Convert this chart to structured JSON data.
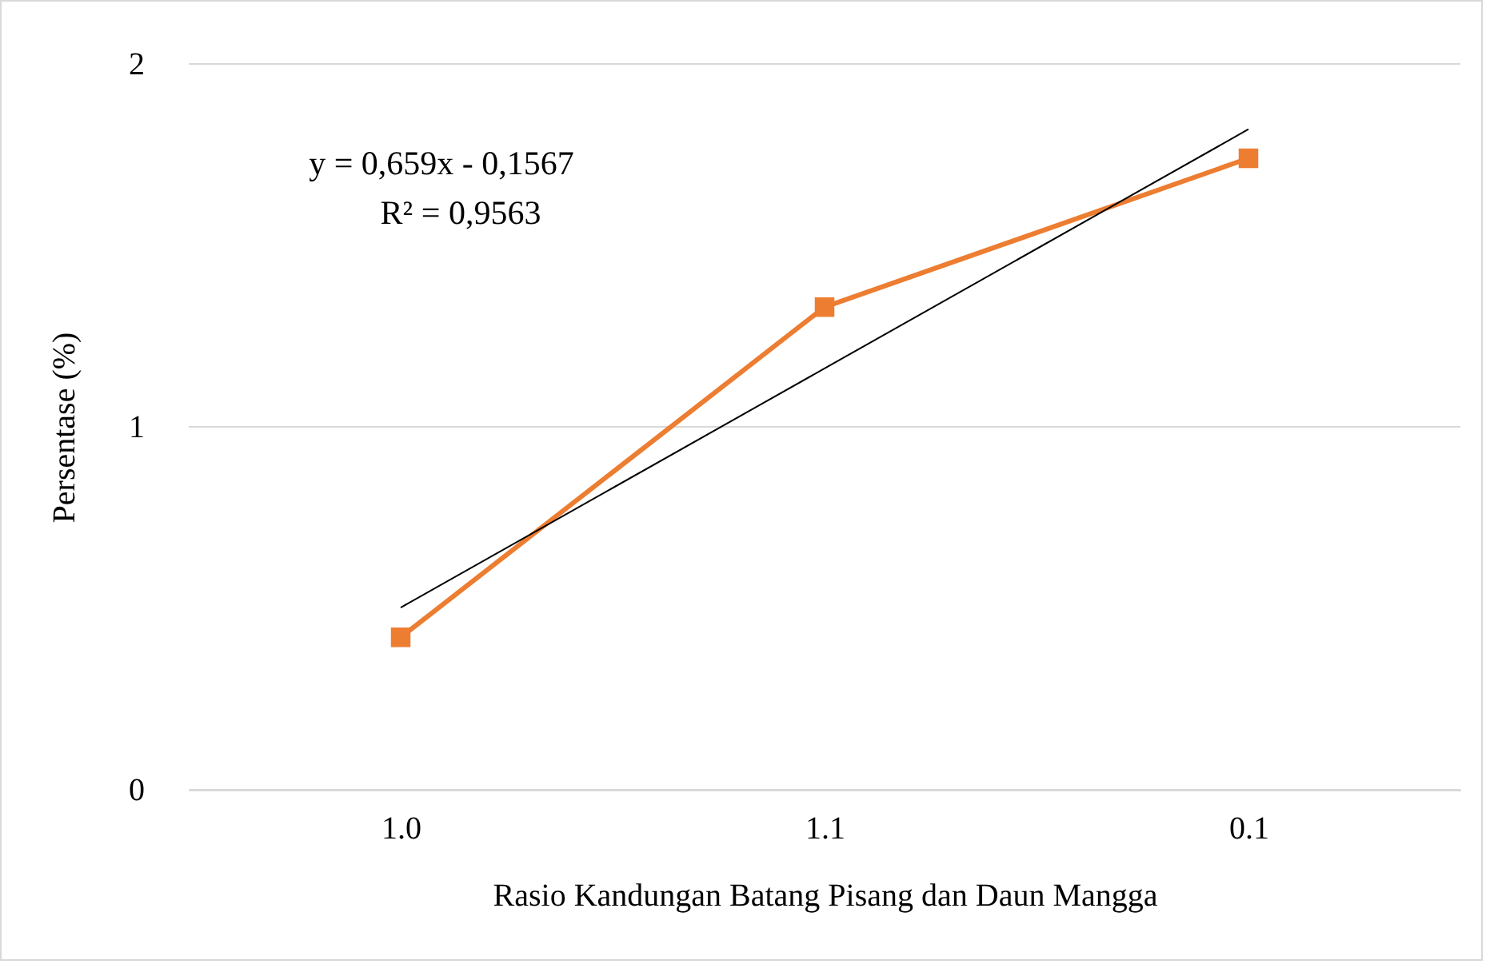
{
  "chart_data": {
    "type": "line",
    "xlabel": "Rasio Kandungan Batang Pisang dan Daun Mangga",
    "ylabel": "Persentase (%)",
    "categories": [
      "1.0",
      "1.1",
      "0.1"
    ],
    "series": [
      {
        "color": "#ed7d31",
        "values": [
          0.42,
          1.33,
          1.74
        ],
        "marker": "square"
      },
      {
        "color": "#000000",
        "values": [
          0.502,
          1.161,
          1.82
        ],
        "marker": "none"
      }
    ],
    "annotations": [
      "y = 0,659x - 0,1567",
      "R² = 0,9563"
    ],
    "ylim": [
      0,
      2
    ],
    "yticks": [
      0,
      1,
      2
    ],
    "grid": "y",
    "line_style": "solid"
  }
}
